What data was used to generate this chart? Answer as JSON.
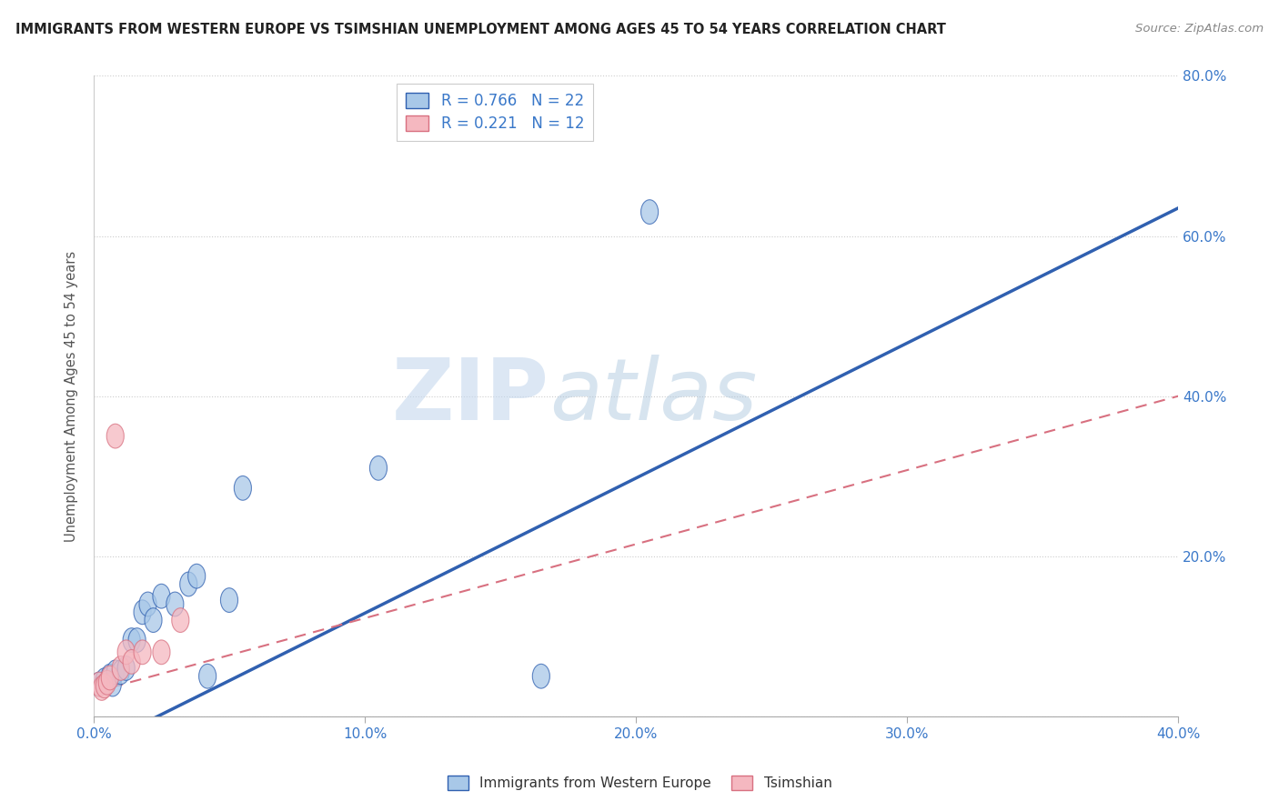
{
  "title": "IMMIGRANTS FROM WESTERN EUROPE VS TSIMSHIAN UNEMPLOYMENT AMONG AGES 45 TO 54 YEARS CORRELATION CHART",
  "source": "Source: ZipAtlas.com",
  "ylabel": "Unemployment Among Ages 45 to 54 years",
  "xlim": [
    0.0,
    0.4
  ],
  "ylim": [
    0.0,
    0.8
  ],
  "xticks": [
    0.0,
    0.1,
    0.2,
    0.3,
    0.4
  ],
  "yticks": [
    0.0,
    0.2,
    0.4,
    0.6,
    0.8
  ],
  "blue_R": 0.766,
  "blue_N": 22,
  "pink_R": 0.221,
  "pink_N": 12,
  "blue_scatter_x": [
    0.002,
    0.004,
    0.006,
    0.007,
    0.008,
    0.01,
    0.012,
    0.014,
    0.016,
    0.018,
    0.02,
    0.022,
    0.025,
    0.03,
    0.035,
    0.038,
    0.042,
    0.05,
    0.055,
    0.105,
    0.165,
    0.205
  ],
  "blue_scatter_y": [
    0.04,
    0.045,
    0.05,
    0.04,
    0.055,
    0.055,
    0.06,
    0.095,
    0.095,
    0.13,
    0.14,
    0.12,
    0.15,
    0.14,
    0.165,
    0.175,
    0.05,
    0.145,
    0.285,
    0.31,
    0.05,
    0.63
  ],
  "pink_scatter_x": [
    0.002,
    0.003,
    0.004,
    0.005,
    0.006,
    0.008,
    0.01,
    0.012,
    0.014,
    0.018,
    0.025,
    0.032
  ],
  "pink_scatter_y": [
    0.04,
    0.035,
    0.038,
    0.042,
    0.048,
    0.35,
    0.06,
    0.08,
    0.068,
    0.08,
    0.08,
    0.12
  ],
  "blue_line_x": [
    0.0,
    0.4
  ],
  "blue_line_y": [
    -0.04,
    0.635
  ],
  "pink_line_x": [
    0.0,
    0.4
  ],
  "pink_line_y": [
    0.03,
    0.4
  ],
  "blue_color": "#a8c8e8",
  "pink_color": "#f5b8c0",
  "blue_line_color": "#3060b0",
  "pink_line_color": "#d87080",
  "watermark_zip": "ZIP",
  "watermark_atlas": "atlas",
  "legend_label_blue": "Immigrants from Western Europe",
  "legend_label_pink": "Tsimshian",
  "background_color": "#ffffff",
  "grid_color": "#cccccc"
}
